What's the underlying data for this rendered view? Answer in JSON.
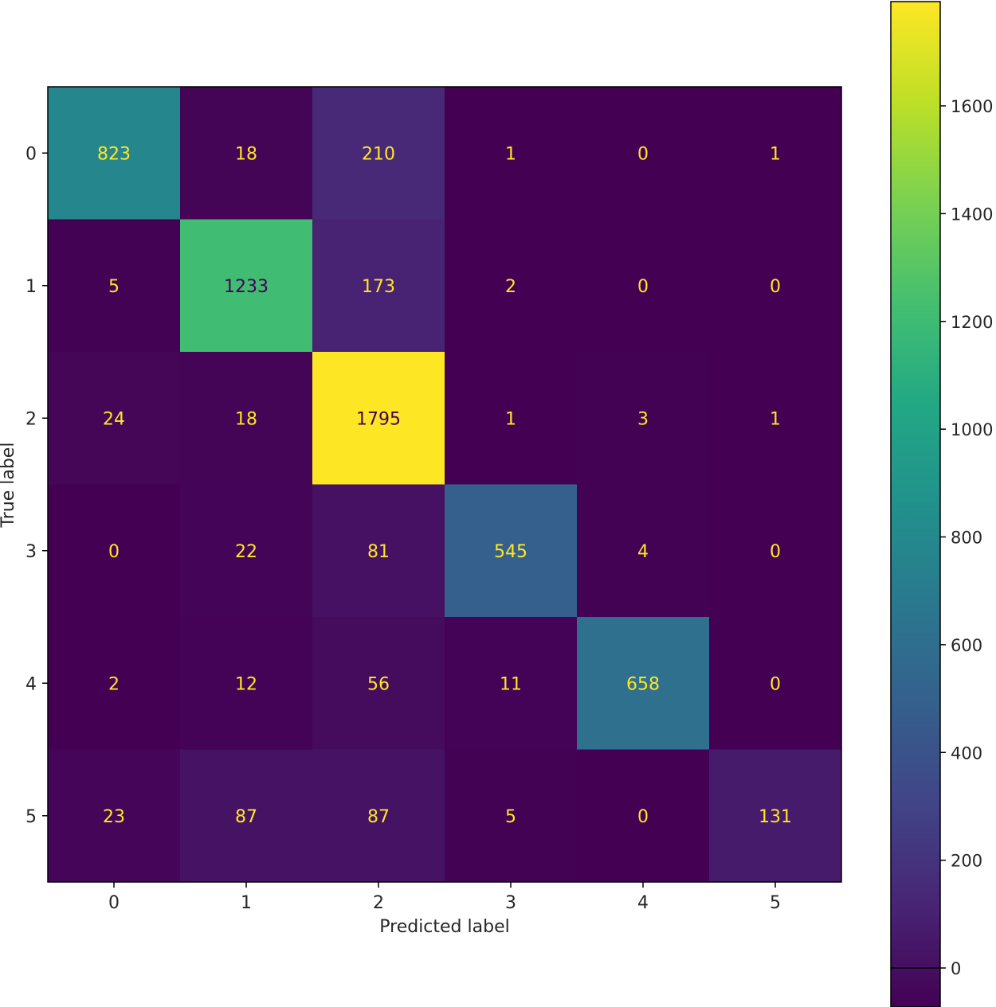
{
  "chart_data": {
    "type": "heatmap",
    "title": "",
    "xlabel": "Predicted label",
    "ylabel": "True label",
    "x_categories": [
      "0",
      "1",
      "2",
      "3",
      "4",
      "5"
    ],
    "y_categories": [
      "0",
      "1",
      "2",
      "3",
      "4",
      "5"
    ],
    "values": [
      [
        823,
        18,
        210,
        1,
        0,
        1
      ],
      [
        5,
        1233,
        173,
        2,
        0,
        0
      ],
      [
        24,
        18,
        1795,
        1,
        3,
        1
      ],
      [
        0,
        22,
        81,
        545,
        4,
        0
      ],
      [
        2,
        12,
        56,
        11,
        658,
        0
      ],
      [
        23,
        87,
        87,
        5,
        0,
        131
      ]
    ],
    "colormap": "viridis",
    "color_range": [
      0,
      1795
    ],
    "colorbar_ticks": [
      "0",
      "200",
      "400",
      "600",
      "800",
      "1000",
      "1200",
      "1400",
      "1600"
    ],
    "grid": false
  }
}
